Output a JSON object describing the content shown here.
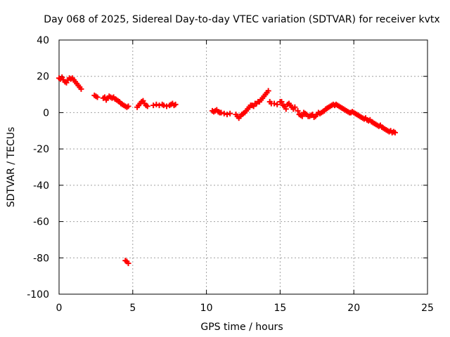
{
  "chart_data": {
    "type": "scatter",
    "title": "Day 068 of 2025, Sidereal Day-to-day VTEC variation (SDTVAR) for receiver kvtx",
    "xlabel": "GPS time / hours",
    "ylabel": "SDTVAR / TECUs",
    "xlim": [
      0,
      25
    ],
    "ylim": [
      -100,
      40
    ],
    "xticks": [
      0,
      5,
      10,
      15,
      20,
      25
    ],
    "yticks": [
      40,
      20,
      0,
      -20,
      -40,
      -60,
      -80,
      -100
    ],
    "grid": true,
    "marker": "+",
    "color": "#ff0000",
    "series": [
      {
        "name": "SDTVAR",
        "points": [
          [
            0.0,
            19
          ],
          [
            0.1,
            18.5
          ],
          [
            0.2,
            19.5
          ],
          [
            0.3,
            18
          ],
          [
            0.4,
            17
          ],
          [
            0.5,
            16.5
          ],
          [
            0.6,
            18
          ],
          [
            0.7,
            19
          ],
          [
            0.8,
            18.5
          ],
          [
            0.9,
            19
          ],
          [
            1.0,
            18
          ],
          [
            1.1,
            17
          ],
          [
            1.2,
            16
          ],
          [
            1.3,
            15
          ],
          [
            1.4,
            14
          ],
          [
            1.5,
            13
          ],
          [
            2.4,
            9.5
          ],
          [
            2.5,
            9
          ],
          [
            2.6,
            8.5
          ],
          [
            3.0,
            8
          ],
          [
            3.1,
            8.5
          ],
          [
            3.2,
            7
          ],
          [
            3.3,
            8
          ],
          [
            3.4,
            9
          ],
          [
            3.5,
            8.5
          ],
          [
            3.6,
            8
          ],
          [
            3.7,
            8.5
          ],
          [
            3.8,
            7.5
          ],
          [
            3.9,
            7
          ],
          [
            4.0,
            6.5
          ],
          [
            4.1,
            6
          ],
          [
            4.2,
            5
          ],
          [
            4.3,
            4.5
          ],
          [
            4.4,
            4
          ],
          [
            4.5,
            3.5
          ],
          [
            4.6,
            3
          ],
          [
            4.7,
            3.5
          ],
          [
            4.5,
            -81.5
          ],
          [
            4.6,
            -82
          ],
          [
            4.7,
            -83
          ],
          [
            5.3,
            3
          ],
          [
            5.4,
            4
          ],
          [
            5.5,
            5
          ],
          [
            5.6,
            6
          ],
          [
            5.7,
            6.5
          ],
          [
            5.8,
            5
          ],
          [
            5.9,
            4
          ],
          [
            6.0,
            3.5
          ],
          [
            6.4,
            4
          ],
          [
            6.6,
            4.5
          ],
          [
            6.8,
            4
          ],
          [
            7.0,
            4.5
          ],
          [
            7.1,
            4
          ],
          [
            7.3,
            3.5
          ],
          [
            7.5,
            4
          ],
          [
            7.6,
            4.5
          ],
          [
            7.7,
            5
          ],
          [
            7.8,
            4
          ],
          [
            7.9,
            4.5
          ],
          [
            10.4,
            1
          ],
          [
            10.5,
            0.5
          ],
          [
            10.6,
            1
          ],
          [
            10.7,
            1.5
          ],
          [
            10.8,
            0.5
          ],
          [
            10.9,
            0
          ],
          [
            11.0,
            0
          ],
          [
            11.2,
            -0.5
          ],
          [
            11.4,
            -1
          ],
          [
            11.6,
            -0.5
          ],
          [
            12.0,
            -1
          ],
          [
            12.1,
            -2
          ],
          [
            12.2,
            -3
          ],
          [
            12.3,
            -2
          ],
          [
            12.4,
            -1
          ],
          [
            12.5,
            -0.5
          ],
          [
            12.6,
            0
          ],
          [
            12.7,
            1
          ],
          [
            12.8,
            2
          ],
          [
            12.9,
            3
          ],
          [
            13.0,
            4
          ],
          [
            13.1,
            4
          ],
          [
            13.2,
            3.5
          ],
          [
            13.3,
            5
          ],
          [
            13.4,
            5
          ],
          [
            13.5,
            6
          ],
          [
            13.6,
            6
          ],
          [
            13.7,
            7
          ],
          [
            13.8,
            8
          ],
          [
            13.9,
            9
          ],
          [
            14.0,
            10
          ],
          [
            14.1,
            11
          ],
          [
            14.2,
            12
          ],
          [
            14.3,
            6
          ],
          [
            14.4,
            5
          ],
          [
            14.6,
            5
          ],
          [
            14.8,
            4.5
          ],
          [
            15.0,
            6
          ],
          [
            15.1,
            6
          ],
          [
            15.2,
            4
          ],
          [
            15.3,
            3.5
          ],
          [
            15.4,
            2
          ],
          [
            15.5,
            4.5
          ],
          [
            15.6,
            5
          ],
          [
            15.7,
            4
          ],
          [
            15.8,
            3
          ],
          [
            15.9,
            2
          ],
          [
            16.0,
            3
          ],
          [
            16.2,
            1
          ],
          [
            16.3,
            -1
          ],
          [
            16.4,
            -1.5
          ],
          [
            16.5,
            -2
          ],
          [
            16.6,
            0
          ],
          [
            16.7,
            -0.5
          ],
          [
            16.8,
            -1
          ],
          [
            16.9,
            -2
          ],
          [
            17.0,
            -2
          ],
          [
            17.1,
            -1.5
          ],
          [
            17.2,
            -1
          ],
          [
            17.3,
            -2.5
          ],
          [
            17.4,
            -2
          ],
          [
            17.5,
            -1
          ],
          [
            17.6,
            0
          ],
          [
            17.7,
            -0.5
          ],
          [
            17.8,
            0
          ],
          [
            17.9,
            0.5
          ],
          [
            18.0,
            1
          ],
          [
            18.1,
            2
          ],
          [
            18.2,
            2.5
          ],
          [
            18.3,
            3
          ],
          [
            18.4,
            3.5
          ],
          [
            18.5,
            4
          ],
          [
            18.6,
            4.5
          ],
          [
            18.7,
            4
          ],
          [
            18.8,
            4.5
          ],
          [
            18.9,
            4
          ],
          [
            19.0,
            3.5
          ],
          [
            19.1,
            3
          ],
          [
            19.2,
            2.5
          ],
          [
            19.3,
            2
          ],
          [
            19.4,
            1.5
          ],
          [
            19.5,
            1
          ],
          [
            19.6,
            0.5
          ],
          [
            19.7,
            0
          ],
          [
            19.8,
            0
          ],
          [
            19.9,
            0.5
          ],
          [
            20.0,
            0
          ],
          [
            20.1,
            -0.5
          ],
          [
            20.2,
            -1
          ],
          [
            20.3,
            -1.5
          ],
          [
            20.4,
            -2
          ],
          [
            20.5,
            -2.5
          ],
          [
            20.6,
            -3
          ],
          [
            20.7,
            -3.5
          ],
          [
            20.8,
            -3
          ],
          [
            20.9,
            -4
          ],
          [
            21.0,
            -4.5
          ],
          [
            21.1,
            -4
          ],
          [
            21.2,
            -5
          ],
          [
            21.3,
            -5.5
          ],
          [
            21.4,
            -6
          ],
          [
            21.5,
            -6.5
          ],
          [
            21.6,
            -7
          ],
          [
            21.7,
            -7.5
          ],
          [
            21.8,
            -7
          ],
          [
            21.9,
            -8
          ],
          [
            22.0,
            -8.5
          ],
          [
            22.1,
            -9
          ],
          [
            22.2,
            -9.5
          ],
          [
            22.3,
            -10
          ],
          [
            22.4,
            -10.5
          ],
          [
            22.5,
            -10
          ],
          [
            22.6,
            -11
          ],
          [
            22.7,
            -10.5
          ],
          [
            22.8,
            -11
          ]
        ]
      }
    ]
  }
}
